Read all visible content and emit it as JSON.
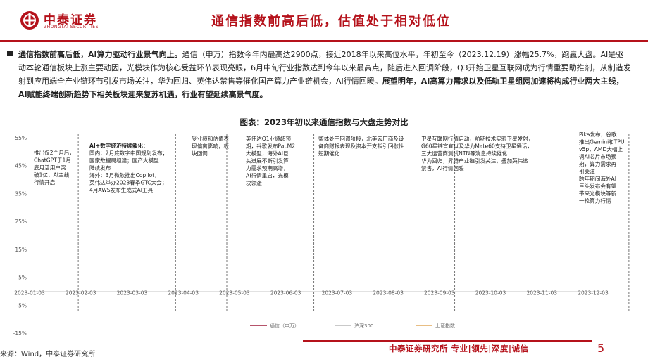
{
  "header": {
    "logo_cn": "中泰证券",
    "logo_en": "ZHONGTAI SECURITIES",
    "title": "通信指数前高后低，估值处于相对低位"
  },
  "summary": {
    "s1": "通信指数前高后低，AI算力驱动行业景气向上。",
    "s2": "通信（申万）指数今年内最高达2900点，接近2018年以来高位水平，年初至今（2023.12.19）涨幅25.7%，跑赢大盘。AI是驱动本轮通信板块上涨主要动因，光模块作为核心受益环节表现亮眼，6月中旬行业指数达到今年以来最高点，随后进入回调阶段，Q3开始卫星互联网成为行情重要助推剂，从制造发射到应用端全产业链环节引发市场关注，华为回归、英伟达禁售等催化国产算力产业链机会，AI行情回暖。",
    "s3": "展望明年，AI高算力需求以及低轨卫星组网加速将构成行业两大主线，AI赋能终端创新趋势下相关板块迎来复苏机遇，行业有望延续高景气度。"
  },
  "figure_title": "图表：2023年初以来通信指数与大盘走势对比",
  "chart_data": {
    "type": "line",
    "title": "图表：2023年初以来通信指数与大盘走势对比",
    "x_ticks": [
      "2023-01-03",
      "2023-02-03",
      "2023-03-03",
      "2023-04-03",
      "2023-05-03",
      "2023-06-03",
      "2023-07-03",
      "2023-08-03",
      "2023-09-03",
      "2023-10-03",
      "2023-11-03",
      "2023-12-03"
    ],
    "y_ticks": [
      "55%",
      "45%",
      "35%",
      "25%",
      "15%",
      "5%",
      "-5%",
      "-15%"
    ],
    "ylim": [
      -15,
      55
    ],
    "grid": false,
    "legend_position": "bottom",
    "legend": [
      "通信（申万）",
      "沪深300",
      "上证指数"
    ],
    "series_colors": [
      "#9e1b3a",
      "#b7b7b7",
      "#e0a85c"
    ],
    "series": []
  },
  "annotations": {
    "a1": [
      "推出仅2个月后，",
      "ChatGPT于1月",
      "底月活用户突",
      "破1亿，AI主线",
      "行情开启"
    ],
    "a2_title": "AI+数字经济持续催化：",
    "a2": [
      "国内：2月底数字中国规划发布；",
      "国家数据局组建；国产大模型",
      "陆续发布",
      "海外：3月微软推出Copilot，",
      "英伟达举办2023春季GTC大会；",
      "4月AWS发布生成式AI工具"
    ],
    "a3": [
      "受业绩和估值表",
      "现偏离影响，板",
      "块回调"
    ],
    "a4": [
      "英伟达Q1业绩超预",
      "期，谷歌发布PaLM2",
      "大模型，海外AI巨",
      "头进展不断引发算",
      "力需求预期高增，",
      "AI行情重启，光模",
      "块领涨"
    ],
    "a5": [
      "整体处于回调阶段，北美云厂商及设",
      "备商财报表现及资本开支指引回歇性",
      "短期催化"
    ],
    "a6": [
      "卫星互联网行情启动，前期技术实验卫星发射，",
      "G60星链官宣以及华为Mate60支持卫星通话，",
      "三大运营商测试NTN等消息持续催化",
      "华为回归，昇腾产业链引发关注，叠加英伟达",
      "禁售，AI行情回暖"
    ],
    "a7": [
      "Pika发布，谷歌",
      "推出Gemini和TPU",
      "v5p，AMD大幅上",
      "调AI芯片市场预",
      "期，算力需求再",
      "引关注",
      "跨年期间海外AI",
      "巨头发布会有望",
      "带来光模块等新",
      "一轮算力行情"
    ]
  },
  "footer": {
    "source": "来源：Wind，中泰证券研究所",
    "slogan": "中泰证券研究所 专业|领先|深度|诚信",
    "page": "5"
  }
}
